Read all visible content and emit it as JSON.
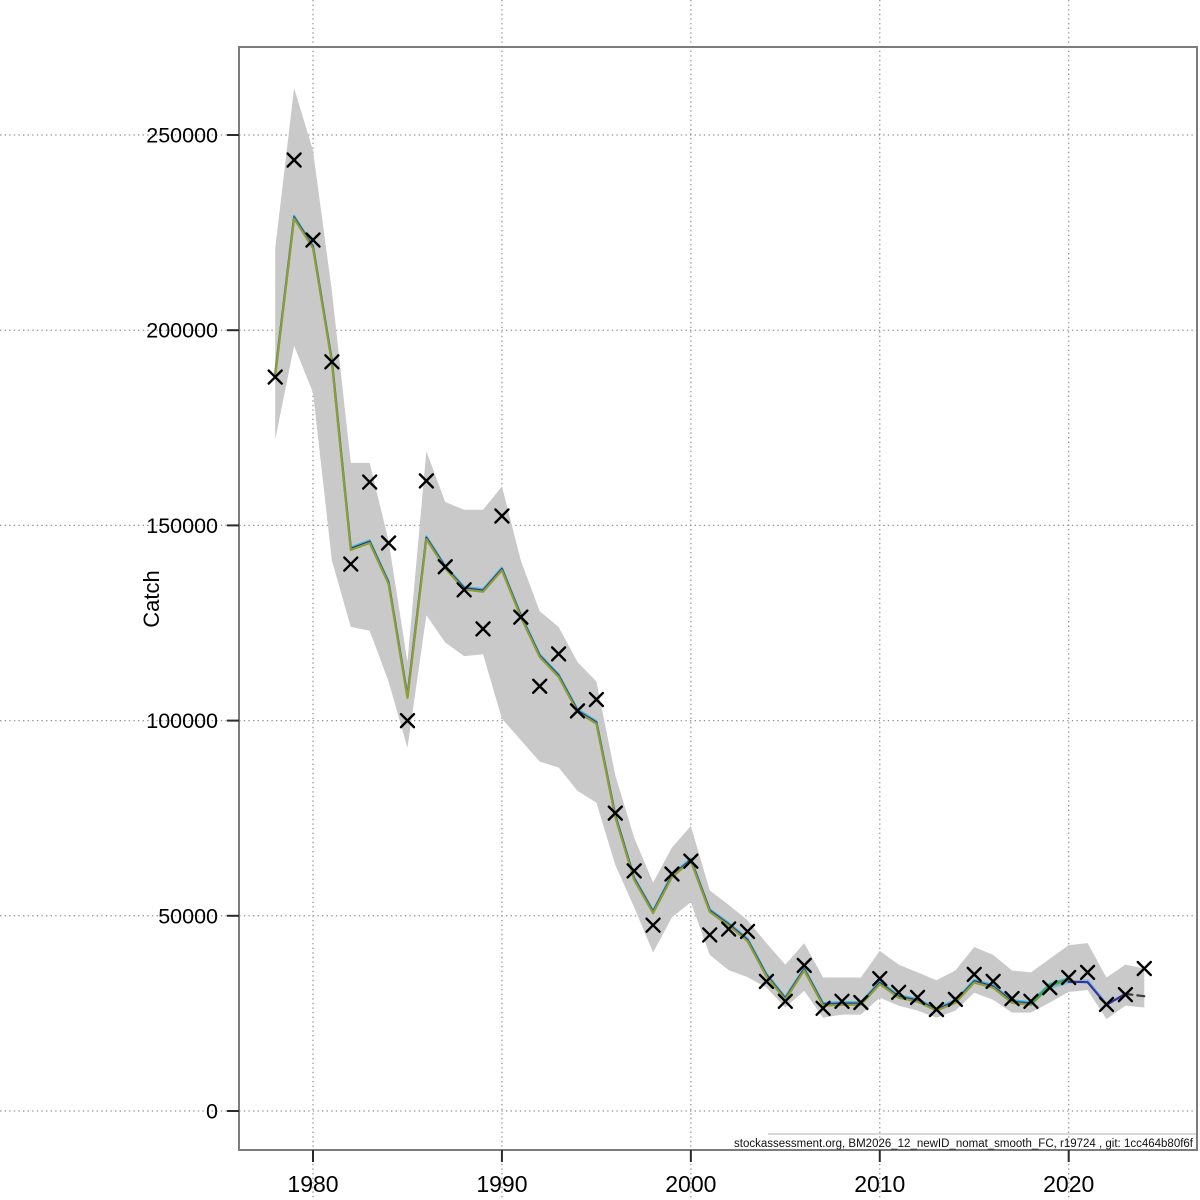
{
  "figure": {
    "ylabel": "Catch",
    "xlabel": "",
    "caption": "stockassessment.org, BM2026_12_newID_nomat_smooth_FC, r19724 , git: 1cc464b80f6f"
  },
  "chart_data": {
    "type": "line",
    "title": "",
    "xlabel": "",
    "ylabel": "Catch",
    "grid": true,
    "legend_position": "none",
    "xlim": [
      1976.1,
      2026.8
    ],
    "ylim": [
      -10500,
      273000
    ],
    "xticks": [
      1980,
      1990,
      2000,
      2010,
      2020
    ],
    "yticks": [
      0,
      50000,
      100000,
      150000,
      200000,
      250000
    ],
    "years": [
      1978,
      1979,
      1980,
      1981,
      1982,
      1983,
      1984,
      1985,
      1986,
      1987,
      1988,
      1989,
      1990,
      1991,
      1992,
      1993,
      1994,
      1995,
      1996,
      1997,
      1998,
      1999,
      2000,
      2001,
      2002,
      2003,
      2004,
      2005,
      2006,
      2007,
      2008,
      2009,
      2010,
      2011,
      2012,
      2013,
      2014,
      2015,
      2016,
      2017,
      2018,
      2019,
      2020,
      2021,
      2022,
      2023,
      2024
    ],
    "observed_catch": {
      "marker": "x",
      "color": "#000000",
      "values": [
        188000,
        243600,
        223100,
        191900,
        140100,
        161100,
        145500,
        100000,
        161400,
        139400,
        133500,
        123500,
        152400,
        126500,
        108800,
        117100,
        102500,
        105400,
        76300,
        61500,
        47600,
        60700,
        64000,
        45100,
        46600,
        46000,
        33200,
        28100,
        37300,
        26300,
        28100,
        27800,
        33900,
        30400,
        29100,
        26000,
        28600,
        35000,
        33200,
        28800,
        28100,
        31600,
        34200,
        35500,
        27300,
        29800,
        36500
      ]
    },
    "ci_band": {
      "color": "#c9c9c9",
      "years": [
        1978,
        1979,
        1980,
        1981,
        1982,
        1983,
        1984,
        1985,
        1986,
        1987,
        1988,
        1989,
        1990,
        1991,
        1992,
        1993,
        1994,
        1995,
        1996,
        1997,
        1998,
        1999,
        2000,
        2001,
        2002,
        2003,
        2004,
        2005,
        2006,
        2007,
        2008,
        2009,
        2010,
        2011,
        2012,
        2013,
        2014,
        2015,
        2016,
        2017,
        2018,
        2019,
        2020,
        2021,
        2022,
        2023,
        2024
      ],
      "upper": [
        221000,
        262000,
        246000,
        210000,
        166000,
        166000,
        146000,
        115000,
        169000,
        156000,
        154000,
        154000,
        160000,
        141000,
        128000,
        124000,
        115000,
        110000,
        86000,
        70000,
        58500,
        67500,
        73000,
        56500,
        52800,
        48900,
        43000,
        37500,
        43000,
        34200,
        34200,
        34200,
        41000,
        37500,
        35500,
        33500,
        36000,
        42000,
        40000,
        36000,
        35500,
        39000,
        42500,
        43000,
        34200,
        37500,
        36500
      ],
      "lower": [
        172000,
        196000,
        184000,
        141000,
        124000,
        123000,
        110000,
        93000,
        127000,
        120000,
        116500,
        117000,
        100500,
        95000,
        89500,
        88000,
        82000,
        79000,
        63000,
        52200,
        40600,
        49600,
        53500,
        40000,
        36100,
        34300,
        31600,
        26500,
        30800,
        23900,
        24700,
        24700,
        29000,
        27000,
        25700,
        23900,
        25700,
        30300,
        28500,
        25200,
        25200,
        27800,
        30500,
        31000,
        23500,
        27000,
        26500
      ]
    },
    "fit": {
      "name": "model-fit",
      "color": "#8f9e32",
      "overlay_colors": [
        "#3dbfc4",
        "#32339b"
      ],
      "years": [
        1978,
        1979,
        1980,
        1981,
        1982,
        1983,
        1984,
        1985,
        1986,
        1987,
        1988,
        1989,
        1990,
        1991,
        1992,
        1993,
        1994,
        1995,
        1996,
        1997,
        1998,
        1999,
        2000,
        2001,
        2002,
        2003,
        2004,
        2005,
        2006,
        2007,
        2008,
        2009,
        2010,
        2011,
        2012,
        2013,
        2014,
        2015,
        2016,
        2017,
        2018,
        2019,
        2020
      ],
      "values": [
        188300,
        228600,
        221000,
        191700,
        143700,
        145500,
        135000,
        105800,
        146500,
        139000,
        133600,
        133000,
        138500,
        126500,
        116300,
        111200,
        102200,
        99200,
        75300,
        59200,
        50700,
        59900,
        64000,
        51000,
        47500,
        43500,
        34500,
        28500,
        36000,
        27000,
        27200,
        27200,
        32500,
        29000,
        28000,
        25700,
        27700,
        32900,
        31600,
        27700,
        27200,
        31900,
        33400
      ]
    },
    "extra_fits": [
      {
        "name": "fit-green",
        "color": "#3aa65c",
        "style": "solid",
        "years": [
          2018,
          2019,
          2020
        ],
        "values": [
          27400,
          32300,
          33700
        ]
      },
      {
        "name": "fit-skyblue",
        "color": "#7cb9e8",
        "style": "solid",
        "years": [
          2019,
          2020,
          2021,
          2022
        ],
        "values": [
          31500,
          32900,
          33500,
          27500
        ]
      },
      {
        "name": "fit-navy",
        "color": "#32339b",
        "style": "solid",
        "years": [
          2020,
          2021,
          2022,
          2023
        ],
        "values": [
          33100,
          33000,
          27200,
          30000
        ]
      },
      {
        "name": "forecast",
        "color": "#3c3c3c",
        "style": "dashed",
        "years": [
          2023,
          2024
        ],
        "values": [
          30000,
          29400
        ]
      }
    ],
    "colors": {
      "band": "#c9c9c9",
      "fit_main": "#8f9e32",
      "fit_cyan_overlay": "#3dbfc4",
      "fit_navy_overlay": "#32339b",
      "markers": "#000000",
      "grid": "#949494",
      "box": "#7c7c7c",
      "ticks": "#2a2a2a"
    }
  }
}
